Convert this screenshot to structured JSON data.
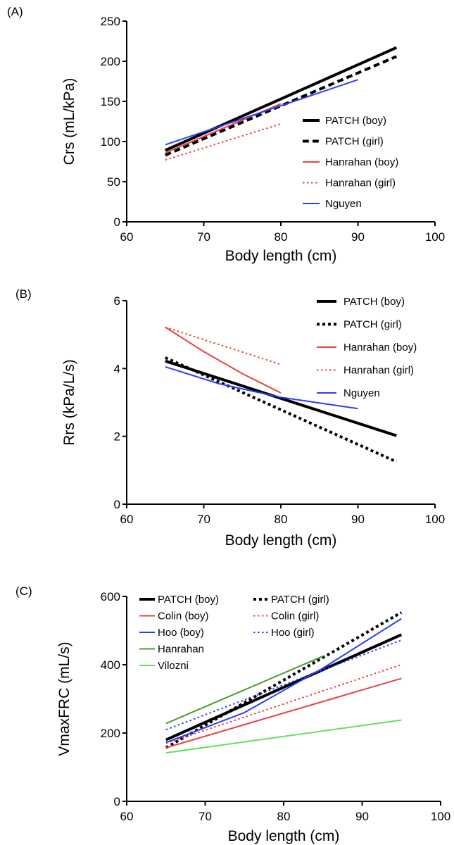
{
  "colors": {
    "black": "#000000",
    "red": "#e8423f",
    "blue": "#2b3ff5",
    "dark_green": "#4a9a2e",
    "light_green": "#63e05a"
  },
  "chart_data": [
    {
      "panel_label": "(A)",
      "type": "line",
      "xlabel": "Body length (cm)",
      "ylabel": "Crs (mL/kPa)",
      "xlim": [
        60,
        100
      ],
      "ylim": [
        0,
        250
      ],
      "xticks": [
        "60",
        "70",
        "80",
        "90",
        "100"
      ],
      "yticks": [
        "0",
        "50",
        "100",
        "150",
        "200",
        "250"
      ],
      "legend_position": "right",
      "series": [
        {
          "name": "PATCH (boy)",
          "color": "black",
          "style": "solid",
          "width": 4,
          "x": [
            65,
            95
          ],
          "y": [
            89,
            217
          ]
        },
        {
          "name": "PATCH (girl)",
          "color": "black",
          "style": "dashed",
          "width": 4,
          "x": [
            65,
            95
          ],
          "y": [
            83,
            206
          ]
        },
        {
          "name": "Hanrahan (boy)",
          "color": "red",
          "style": "solid",
          "width": 2,
          "x": [
            65,
            80
          ],
          "y": [
            86,
            147
          ]
        },
        {
          "name": "Hanrahan (girl)",
          "color": "red",
          "style": "dotted",
          "width": 2,
          "x": [
            65,
            80
          ],
          "y": [
            77,
            122
          ]
        },
        {
          "name": "Nguyen",
          "color": "blue",
          "style": "solid",
          "width": 2,
          "x": [
            65,
            90
          ],
          "y": [
            96,
            177
          ]
        }
      ]
    },
    {
      "panel_label": "(B)",
      "type": "line",
      "xlabel": "Body length (cm)",
      "ylabel": "Rrs (kPa/L/s)",
      "xlim": [
        60,
        100
      ],
      "ylim": [
        0,
        6
      ],
      "xticks": [
        "60",
        "70",
        "80",
        "90",
        "100"
      ],
      "yticks": [
        "0",
        "2",
        "4",
        "6"
      ],
      "legend_position": "top-right",
      "series": [
        {
          "name": "PATCH (boy)",
          "color": "black",
          "style": "solid",
          "width": 4,
          "x": [
            65,
            95
          ],
          "y": [
            4.22,
            2.02
          ]
        },
        {
          "name": "PATCH (girl)",
          "color": "black",
          "style": "dotted",
          "width": 4,
          "x": [
            65,
            95
          ],
          "y": [
            4.32,
            1.25
          ]
        },
        {
          "name": "Hanrahan (boy)",
          "color": "red",
          "style": "solid",
          "width": 2,
          "x": [
            65,
            70,
            75,
            80
          ],
          "y": [
            5.22,
            4.5,
            3.85,
            3.28
          ]
        },
        {
          "name": "Hanrahan (girl)",
          "color": "red",
          "style": "dotted",
          "width": 2,
          "x": [
            65,
            80
          ],
          "y": [
            5.22,
            4.12
          ]
        },
        {
          "name": "Nguyen",
          "color": "blue",
          "style": "solid",
          "width": 2,
          "x": [
            65,
            72,
            80,
            90
          ],
          "y": [
            4.05,
            3.55,
            3.15,
            2.82
          ]
        }
      ]
    },
    {
      "panel_label": "(C)",
      "type": "line",
      "xlabel": "Body length (cm)",
      "ylabel": "VmaxFRC (mL/s)",
      "xlim": [
        60,
        100
      ],
      "ylim": [
        0,
        600
      ],
      "xticks": [
        "60",
        "70",
        "80",
        "90",
        "100"
      ],
      "yticks": [
        "0",
        "200",
        "400",
        "600"
      ],
      "legend_position": "top-left",
      "series": [
        {
          "name": "PATCH (boy)",
          "color": "black",
          "style": "solid",
          "width": 4,
          "x": [
            65,
            95
          ],
          "y": [
            180,
            488
          ]
        },
        {
          "name": "PATCH (girl)",
          "color": "black",
          "style": "dotted",
          "width": 4,
          "x": [
            65,
            95
          ],
          "y": [
            157,
            553
          ]
        },
        {
          "name": "Colin (boy)",
          "color": "red",
          "style": "solid",
          "width": 2,
          "x": [
            65,
            95
          ],
          "y": [
            157,
            360
          ]
        },
        {
          "name": "Colin (girl)",
          "color": "red",
          "style": "dotted",
          "width": 2,
          "x": [
            65,
            95
          ],
          "y": [
            170,
            400
          ]
        },
        {
          "name": "Hoo (boy)",
          "color": "blue",
          "style": "solid",
          "width": 2,
          "x": [
            65,
            75,
            85,
            95
          ],
          "y": [
            172,
            260,
            390,
            535
          ]
        },
        {
          "name": "Hoo (girl)",
          "color": "blue",
          "style": "dotted",
          "width": 2,
          "x": [
            65,
            95
          ],
          "y": [
            210,
            472
          ]
        },
        {
          "name": "Hanrahan",
          "color": "dark_green",
          "style": "solid",
          "width": 2,
          "x": [
            65,
            85
          ],
          "y": [
            228,
            425
          ]
        },
        {
          "name": "Vilozni",
          "color": "light_green",
          "style": "solid",
          "width": 2,
          "x": [
            65,
            95
          ],
          "y": [
            142,
            238
          ]
        }
      ]
    }
  ]
}
